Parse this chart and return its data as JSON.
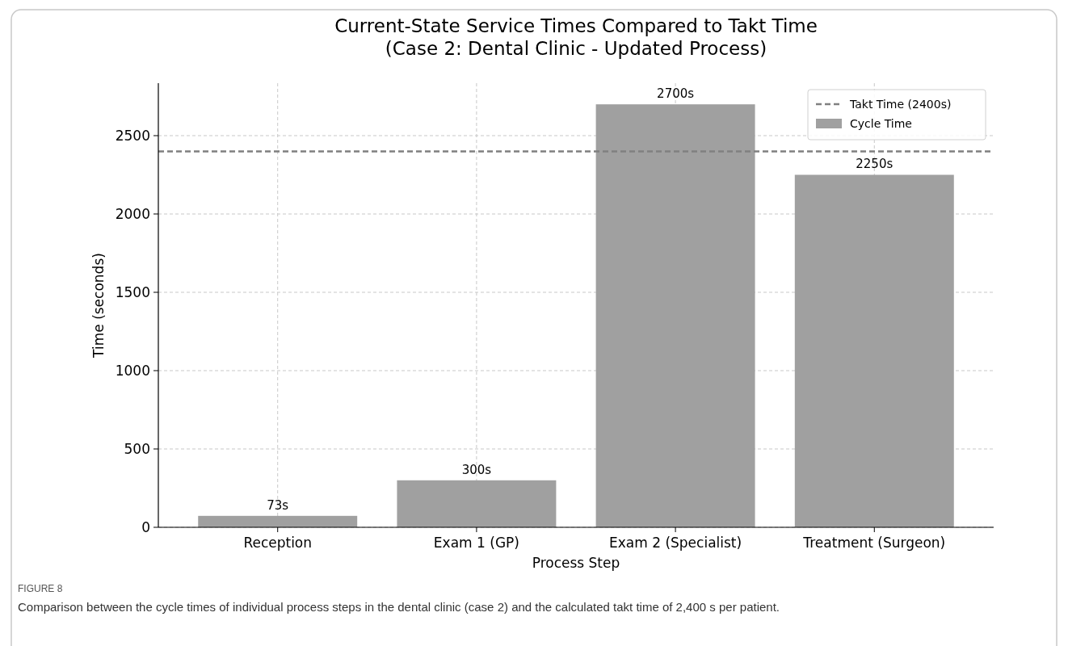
{
  "chart_data": {
    "type": "bar",
    "title": "Current-State Service Times Compared to Takt Time\n(Case 2: Dental Clinic - Updated Process)",
    "xlabel": "Process Step",
    "ylabel": "Time (seconds)",
    "categories": [
      "Reception",
      "Exam 1 (GP)",
      "Exam 2 (Specialist)",
      "Treatment (Surgeon)"
    ],
    "series": [
      {
        "name": "Cycle Time",
        "color": "#a0a0a0",
        "values": [
          73,
          300,
          2700,
          2250
        ],
        "value_labels": [
          "73s",
          "300s",
          "2700s",
          "2250s"
        ]
      }
    ],
    "ylim": [
      0,
      2835
    ],
    "yticks": [
      0,
      500,
      1000,
      1500,
      2000,
      2500
    ],
    "ref_lines": [
      {
        "axis": "y",
        "value": 2400,
        "label": "Takt Time (2400s)",
        "color": "#808080",
        "line_style": "dashed"
      }
    ],
    "grid": true,
    "legend": "top right",
    "annotations": [
      "FIGURE 8",
      "Comparison between the cycle times of individual process steps in the dental clinic (case 2) and the calculated takt time of 2,400 s per patient."
    ]
  }
}
